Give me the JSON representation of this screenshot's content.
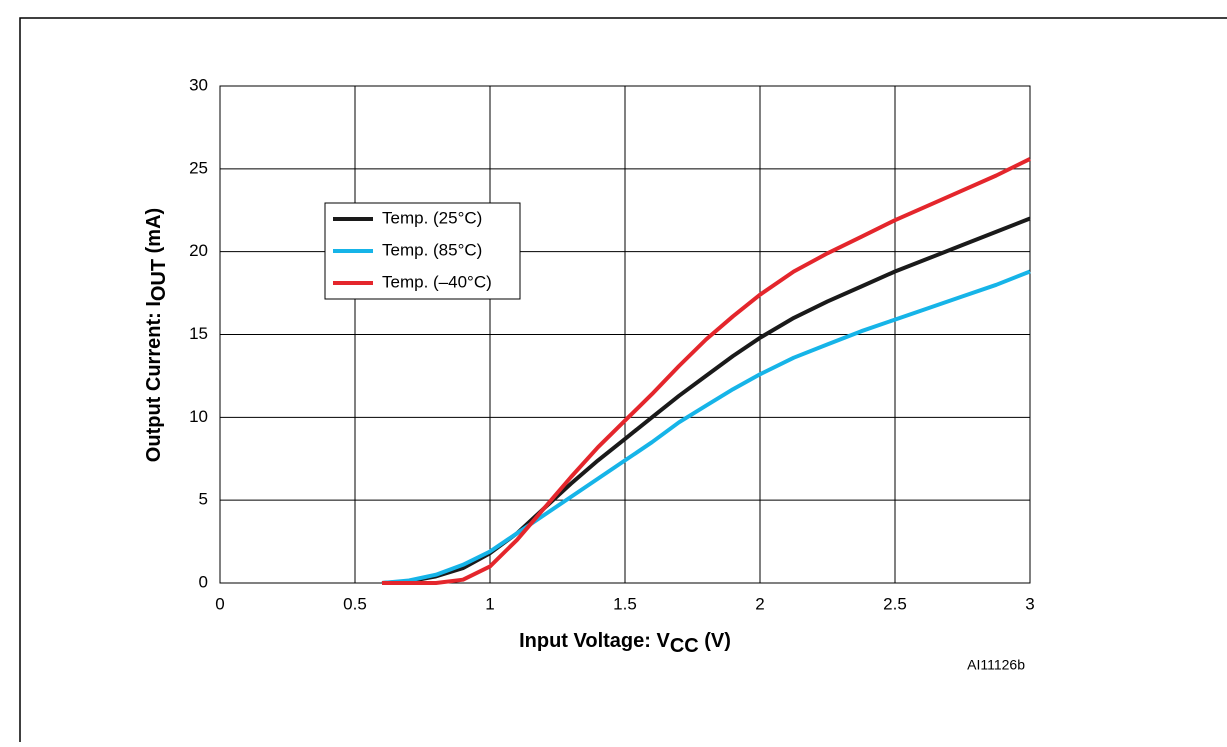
{
  "chart_data": {
    "type": "line",
    "x_label": [
      "Input Voltage: V",
      "CC",
      " (V)"
    ],
    "y_label": [
      "Output Current: I",
      "OUT",
      " (mA)"
    ],
    "note": "AI11126b",
    "x": [
      0.6,
      0.7,
      0.8,
      0.9,
      1.0,
      1.1,
      1.2,
      1.3,
      1.4,
      1.5,
      1.6,
      1.7,
      1.8,
      1.9,
      2.0,
      2.125,
      2.25,
      2.375,
      2.5,
      2.625,
      2.75,
      2.875,
      3.0
    ],
    "series": [
      {
        "name": "Temp. (25°C)",
        "color": "#1a1a1a",
        "values": [
          0,
          0.1,
          0.4,
          0.9,
          1.8,
          3.0,
          4.5,
          6.0,
          7.4,
          8.7,
          10.0,
          11.3,
          12.5,
          13.7,
          14.8,
          16.0,
          17.0,
          17.9,
          18.8,
          19.6,
          20.4,
          21.2,
          22.0
        ]
      },
      {
        "name": "Temp. (85°C)",
        "color": "#16b4e8",
        "values": [
          0,
          0.15,
          0.5,
          1.1,
          1.9,
          3.0,
          4.1,
          5.2,
          6.3,
          7.4,
          8.5,
          9.7,
          10.7,
          11.7,
          12.6,
          13.6,
          14.4,
          15.2,
          15.9,
          16.6,
          17.3,
          18.0,
          18.8
        ]
      },
      {
        "name": "Temp. (–40°C)",
        "color": "#e4262c",
        "values": [
          0,
          0,
          0,
          0.2,
          1.0,
          2.6,
          4.5,
          6.4,
          8.2,
          9.8,
          11.4,
          13.1,
          14.7,
          16.1,
          17.4,
          18.8,
          19.9,
          20.9,
          21.9,
          22.8,
          23.7,
          24.6,
          25.6
        ]
      }
    ],
    "xlim": [
      0,
      3
    ],
    "xticks": [
      0,
      0.5,
      1,
      1.5,
      2,
      2.5,
      3
    ],
    "ylim": [
      0,
      30
    ],
    "yticks": [
      0,
      5,
      10,
      15,
      20,
      25,
      30
    ],
    "grid": true
  }
}
